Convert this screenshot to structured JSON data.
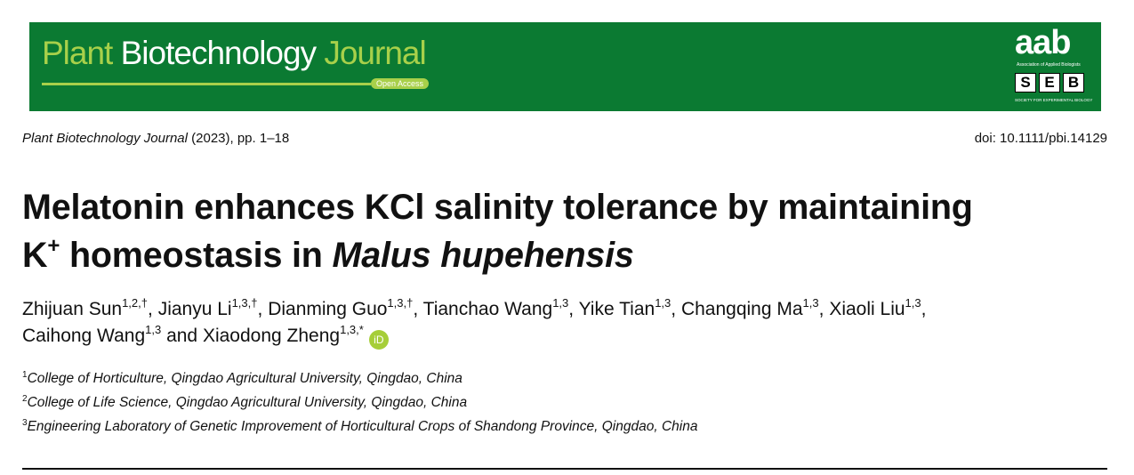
{
  "header": {
    "journal": [
      "Plant",
      "Biotechnology",
      "Journal"
    ],
    "open_access": "Open Access",
    "aab": "aab",
    "aab_name": "Association of Applied Biologists",
    "seb": [
      "S",
      "E",
      "B"
    ],
    "seb_name": "SOCIETY FOR EXPERIMENTAL BIOLOGY"
  },
  "citation": {
    "journal": "Plant Biotechnology Journal",
    "details": "(2023), pp. 1–18"
  },
  "doi": "doi: 10.1111/pbi.14129",
  "title": {
    "line_1": "Melatonin enhances KCl salinity tolerance by maintaining",
    "ion": "K",
    "charge": "+",
    "rest": "homeostasis in",
    "species": "Malus hupehensis"
  },
  "authors": {
    "lines": [
      [
        {
          "name": "Zhijuan Sun",
          "sup": "1,2,†",
          "sep": ","
        },
        {
          "name": "Jianyu Li",
          "sup": "1,3,†",
          "sep": ","
        },
        {
          "name": "Dianming Guo",
          "sup": "1,3,†",
          "sep": ","
        },
        {
          "name": "Tianchao Wang",
          "sup": "1,3",
          "sep": ","
        },
        {
          "name": "Yike Tian",
          "sup": "1,3",
          "sep": ","
        },
        {
          "name": "Changqing Ma",
          "sup": "1,3",
          "sep": ","
        },
        {
          "name": "Xiaoli Liu",
          "sup": "1,3",
          "sep": ","
        }
      ],
      [
        {
          "name": "Caihong Wang",
          "sup": "1,3"
        }
      ]
    ],
    "conjunction": "and",
    "last": {
      "name": "Xiaodong Zheng",
      "sup": "1,3,*"
    },
    "orcid": "iD"
  },
  "affiliations": [
    {
      "number": "1",
      "text": "College of Horticulture, Qingdao Agricultural University, Qingdao, China"
    },
    {
      "number": "2",
      "text": "College of Life Science, Qingdao Agricultural University, Qingdao, China"
    },
    {
      "number": "3",
      "text": "Engineering Laboratory of Genetic Improvement of Horticultural Crops of Shandong Province, Qingdao, China"
    }
  ]
}
